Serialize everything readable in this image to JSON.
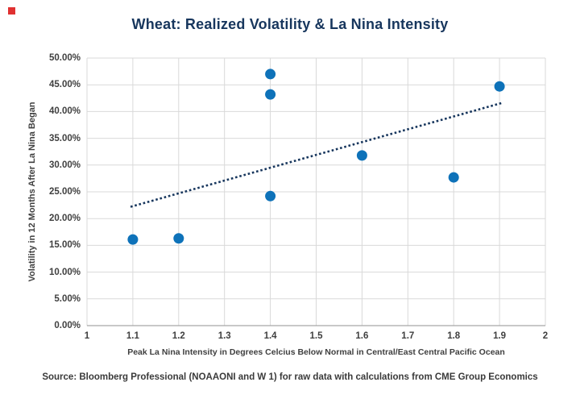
{
  "title": "Wheat: Realized Volatility & La Nina Intensity",
  "source": "Source: Bloomberg Professional (NOAAONI and W 1) for raw data with calculations from CME Group Economics",
  "colors": {
    "title": "#17365d",
    "text": "#3f3f3f",
    "source": "#3a3a3a",
    "point": "#0e72b9",
    "trend": "#17365d",
    "grid": "#d9d9d9",
    "axis_line": "#a6a6a6",
    "marker": "#e03131"
  },
  "chart_data": {
    "type": "scatter",
    "title": "Wheat: Realized Volatility & La Nina Intensity",
    "xlabel": "Peak La Nina Intensity in Degrees Celcius Below Normal in Central/East Central Pacific Ocean",
    "ylabel": "Volatility in 12 Months After La Nina Began",
    "xlim": [
      1,
      2
    ],
    "ylim": [
      0,
      0.5
    ],
    "x_ticks": [
      "1",
      "1.1",
      "1.2",
      "1.3",
      "1.4",
      "1.5",
      "1.6",
      "1.7",
      "1.8",
      "1.9",
      "2"
    ],
    "x_tick_values": [
      1,
      1.1,
      1.2,
      1.3,
      1.4,
      1.5,
      1.6,
      1.7,
      1.8,
      1.9,
      2
    ],
    "y_ticks": [
      "0.00%",
      "5.00%",
      "10.00%",
      "15.00%",
      "20.00%",
      "25.00%",
      "30.00%",
      "35.00%",
      "40.00%",
      "45.00%",
      "50.00%"
    ],
    "y_tick_values": [
      0,
      0.05,
      0.1,
      0.15,
      0.2,
      0.25,
      0.3,
      0.35,
      0.4,
      0.45,
      0.5
    ],
    "points": [
      {
        "x": 1.1,
        "y": 0.161
      },
      {
        "x": 1.2,
        "y": 0.163
      },
      {
        "x": 1.4,
        "y": 0.47
      },
      {
        "x": 1.4,
        "y": 0.432
      },
      {
        "x": 1.4,
        "y": 0.242
      },
      {
        "x": 1.6,
        "y": 0.318
      },
      {
        "x": 1.8,
        "y": 0.277
      },
      {
        "x": 1.9,
        "y": 0.447
      }
    ],
    "trendline": {
      "x1": 1.095,
      "y1": 0.222,
      "x2": 1.905,
      "y2": 0.416,
      "style": "dotted"
    },
    "grid": true,
    "legend": false
  }
}
